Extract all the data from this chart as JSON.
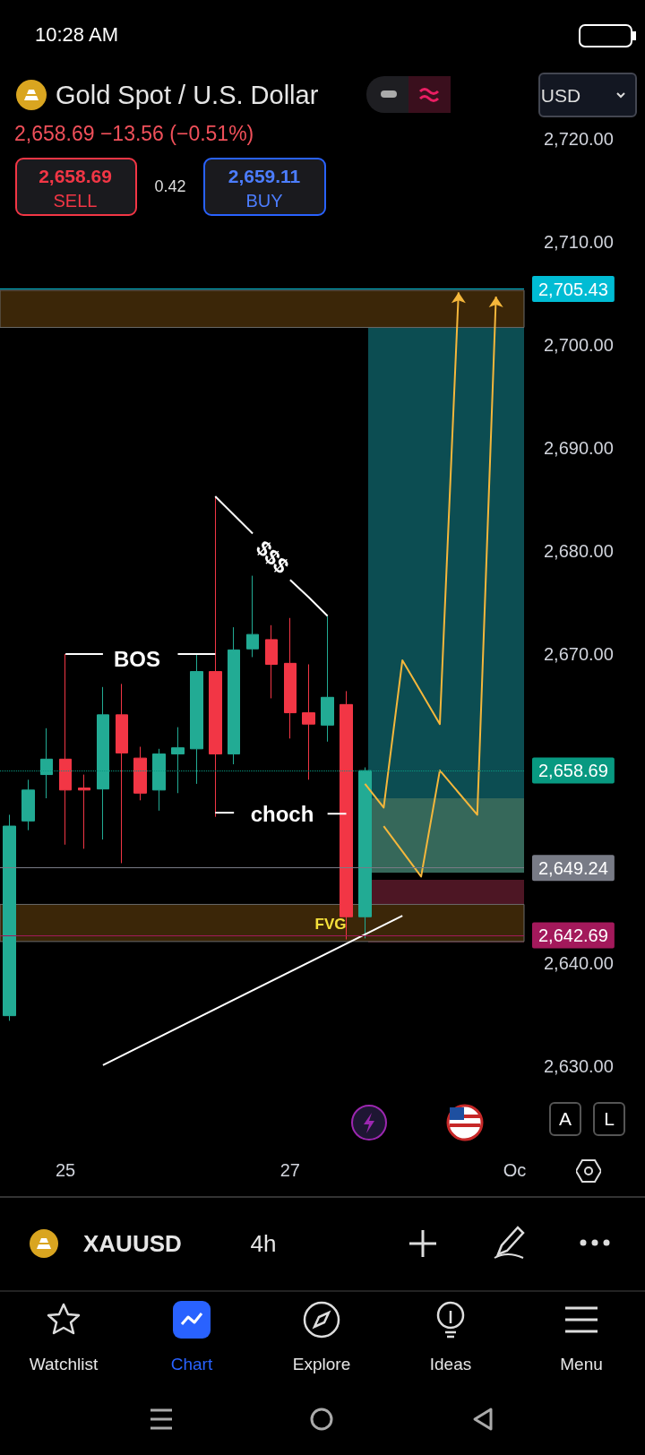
{
  "chart_data": {
    "type": "candlestick",
    "title": "Gold Spot / U.S. Dollar",
    "subtitle": "2,658.69  −13.56 (−0.51%)",
    "categories": [
      null,
      null,
      null,
      "25",
      null,
      null,
      null,
      null,
      null,
      null,
      null,
      null,
      null,
      null,
      null,
      "27",
      null,
      null,
      null,
      null,
      null,
      null,
      null,
      null,
      null,
      null,
      null,
      "Oc"
    ],
    "ohlc": [
      [
        2634.9,
        2654.4,
        2634.4,
        2653.3
      ],
      [
        2653.8,
        2657.8,
        2652.9,
        2656.8
      ],
      [
        2658.3,
        2662.8,
        2656.0,
        2659.8
      ],
      [
        2659.8,
        2670.0,
        2651.5,
        2656.8
      ],
      [
        2657.0,
        2658.3,
        2651.1,
        2656.8
      ],
      [
        2656.9,
        2666.8,
        2652.0,
        2664.1
      ],
      [
        2664.1,
        2667.1,
        2649.7,
        2660.4
      ],
      [
        2659.9,
        2661.0,
        2655.8,
        2656.5
      ],
      [
        2656.8,
        2660.8,
        2654.8,
        2660.3
      ],
      [
        2660.3,
        2662.9,
        2656.5,
        2660.9
      ],
      [
        2660.8,
        2670.0,
        2657.4,
        2668.3
      ],
      [
        2668.3,
        2685.3,
        2654.2,
        2660.3
      ],
      [
        2660.3,
        2672.6,
        2659.3,
        2670.4
      ],
      [
        2670.5,
        2677.6,
        2669.7,
        2671.9
      ],
      [
        2671.4,
        2672.8,
        2665.7,
        2669.0
      ],
      [
        2669.1,
        2673.5,
        2661.8,
        2664.3
      ],
      [
        2664.3,
        2669.0,
        2657.8,
        2663.2
      ],
      [
        2663.1,
        2673.7,
        2661.5,
        2665.8
      ],
      [
        2665.1,
        2666.4,
        2642.3,
        2644.5
      ],
      [
        2644.5,
        2659.0,
        2642.4,
        2658.69
      ],
      null,
      null,
      null,
      null,
      null,
      null,
      null,
      null
    ],
    "series": [
      {
        "type": "line",
        "color": "#ffffff",
        "values": [
          null,
          null,
          null,
          null,
          null,
          2630.1,
          null,
          null,
          null,
          null,
          null,
          null,
          null,
          null,
          null,
          null,
          null,
          null,
          null,
          null,
          null,
          2644.6,
          null,
          null,
          null,
          null,
          null,
          null
        ]
      },
      {
        "type": "line",
        "color": "#f5b73b",
        "values": [
          null,
          null,
          null,
          null,
          null,
          null,
          null,
          null,
          null,
          null,
          null,
          null,
          null,
          null,
          null,
          null,
          null,
          null,
          null,
          2657.4,
          2655.1,
          2669.4,
          null,
          2663.2,
          2705.1,
          null,
          null,
          null
        ]
      },
      {
        "type": "line",
        "color": "#f5b73b",
        "values": [
          null,
          null,
          null,
          null,
          null,
          null,
          null,
          null,
          null,
          null,
          null,
          null,
          null,
          null,
          null,
          null,
          null,
          null,
          null,
          null,
          2653.3,
          null,
          2648.4,
          2658.7,
          null,
          2654.4,
          2704.7,
          null
        ]
      },
      {
        "type": "line",
        "color": "#ffffff",
        "values": [
          null,
          null,
          null,
          2670.0,
          2670.0,
          2670.0,
          null,
          null,
          null,
          null,
          null,
          null,
          null,
          null,
          null,
          null,
          null,
          null,
          null,
          null,
          null,
          null,
          null,
          null,
          null,
          null,
          null,
          null
        ]
      },
      {
        "type": "line",
        "color": "#ffffff",
        "values": [
          null,
          null,
          null,
          null,
          null,
          null,
          null,
          null,
          null,
          2670.0,
          2670.0,
          2670.0,
          null,
          null,
          null,
          null,
          null,
          null,
          null,
          null,
          null,
          null,
          null,
          null,
          null,
          null,
          null,
          null
        ]
      },
      {
        "type": "line",
        "color": "#ffffff",
        "values": [
          null,
          null,
          null,
          null,
          null,
          null,
          null,
          null,
          null,
          null,
          null,
          2654.6,
          2654.6,
          null,
          null,
          null,
          null,
          null,
          null,
          null,
          null,
          null,
          null,
          null,
          null,
          null,
          null,
          null
        ]
      },
      {
        "type": "line",
        "color": "#ffffff",
        "values": [
          null,
          null,
          null,
          null,
          null,
          null,
          null,
          null,
          null,
          null,
          null,
          null,
          null,
          null,
          null,
          null,
          null,
          2654.5,
          2654.5,
          null,
          null,
          null,
          null,
          null,
          null,
          null,
          null,
          null
        ]
      },
      {
        "type": "line",
        "color": "#ffffff",
        "values": [
          null,
          null,
          null,
          null,
          null,
          null,
          null,
          null,
          null,
          null,
          null,
          2685.3,
          2683.5,
          2681.7,
          null,
          null,
          null,
          null,
          null,
          null,
          null,
          null,
          null,
          null,
          null,
          null,
          null,
          null
        ]
      },
      {
        "type": "line",
        "color": "#ffffff",
        "values": [
          null,
          null,
          null,
          null,
          null,
          null,
          null,
          null,
          null,
          null,
          null,
          null,
          null,
          null,
          null,
          2677.2,
          2675.5,
          2673.7,
          null,
          null,
          null,
          null,
          null,
          null,
          null,
          null,
          null,
          null
        ]
      }
    ],
    "ylim": [
      2630,
      2720
    ],
    "yticks": [
      {
        "value": 2630,
        "label": "2,630.00"
      },
      {
        "value": 2640,
        "label": "2,640.00"
      },
      {
        "value": 2670,
        "label": "2,670.00"
      },
      {
        "value": 2680,
        "label": "2,680.00"
      },
      {
        "value": 2690,
        "label": "2,690.00"
      },
      {
        "value": 2700,
        "label": "2,700.00"
      },
      {
        "value": 2710,
        "label": "2,710.00"
      },
      {
        "value": 2720,
        "label": "2,720.00"
      }
    ],
    "ref_lines": [
      {
        "axis": "y",
        "value": 2705.43,
        "label": "2,705.43",
        "color": "#00bcd4",
        "line_style": "solid"
      },
      {
        "axis": "y",
        "value": 2658.69,
        "label": "2,658.69",
        "color": "#089981",
        "line_style": "dotted"
      },
      {
        "axis": "y",
        "value": 2649.24,
        "label": "2,649.24",
        "color": "#787b86",
        "line_style": "solid"
      },
      {
        "axis": "y",
        "value": 2642.69,
        "label": "2,642.69",
        "color": "#a3195b",
        "line_style": "solid"
      }
    ],
    "bands": [
      {
        "axis": "y",
        "from": 2701.7,
        "to": 2705.3,
        "label": null,
        "color": "#3b2608"
      },
      {
        "axis": "y",
        "from": 2642.1,
        "to": 2645.7,
        "label": null,
        "color": "#3b2608"
      }
    ],
    "annotations": [
      "10:28 AM",
      "2,658.69",
      "SELL",
      "0.42",
      "2,659.11",
      "BUY",
      "USD",
      "BOS",
      "choch",
      "$$$",
      "FVG",
      "A",
      "L",
      "XAUUSD",
      "4h",
      "Watchlist",
      "Chart",
      "Explore",
      "Ideas",
      "Menu"
    ],
    "grid": false
  }
}
